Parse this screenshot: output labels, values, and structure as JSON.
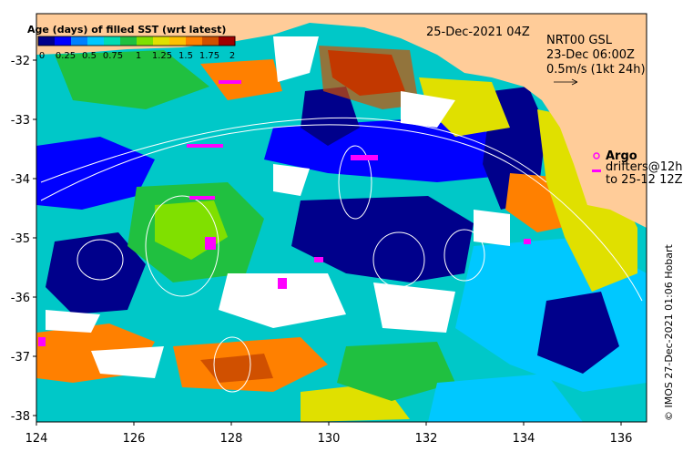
{
  "map": {
    "date_label": "25-Dec-2021 04Z",
    "credit": "© IMOS 27-Dec-2021 01:06 Hobart",
    "lon_ticks": [
      "124",
      "126",
      "128",
      "130",
      "132",
      "134",
      "136"
    ],
    "lat_ticks": [
      "-32",
      "-33",
      "-34",
      "-35",
      "-36",
      "-37",
      "-38"
    ],
    "lon_range": [
      124,
      136.6
    ],
    "lat_range": [
      -38.1,
      -31.2
    ],
    "colors": {
      "land": "#ffcc99",
      "no_data": "#ffffff",
      "contour": "#ffffff"
    }
  },
  "colorbar": {
    "title": "Age (days) of filled SST (wrt latest)",
    "ticks": [
      "0",
      "0.25",
      "0.5",
      "0.75",
      "1",
      "1.25",
      "1.5",
      "1.75",
      "2"
    ],
    "colors": [
      "#00008b",
      "#0000ff",
      "#0080ff",
      "#00c8ff",
      "#00dcb4",
      "#20c040",
      "#80e000",
      "#e0e000",
      "#ffc000",
      "#ff8000",
      "#d05000",
      "#a00000"
    ]
  },
  "legend": {
    "product_line1": "NRT00 GSL",
    "product_line2": "23-Dec 06:00Z",
    "scale_label": "0.5m/s (1kt 24h)",
    "argo_label": "Argo",
    "drifters_line1": "drifters@12h",
    "drifters_line2": "to 25-12 12Z",
    "argo_color": "#ff00ff"
  }
}
